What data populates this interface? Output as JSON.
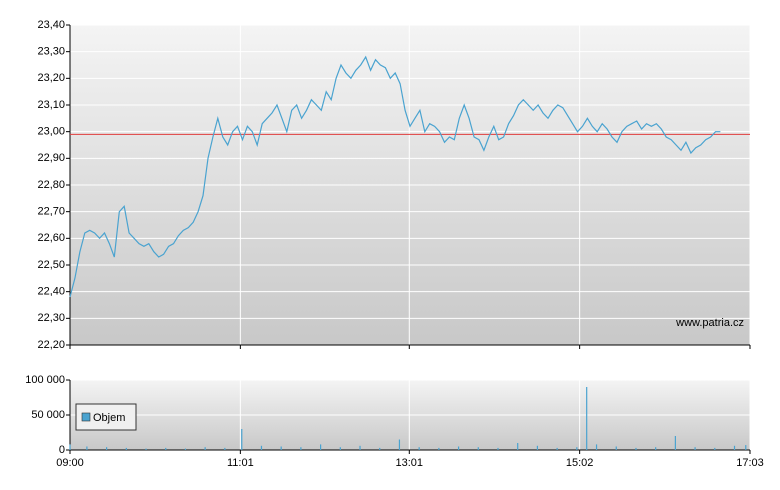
{
  "chart_data": [
    {
      "type": "line",
      "color": "#4aa3d0",
      "ylim": [
        22.2,
        23.4
      ],
      "yticks": [
        {
          "value": 22.2,
          "label": "22,20"
        },
        {
          "value": 22.3,
          "label": "22,30"
        },
        {
          "value": 22.4,
          "label": "22,40"
        },
        {
          "value": 22.5,
          "label": "22,50"
        },
        {
          "value": 22.6,
          "label": "22,60"
        },
        {
          "value": 22.7,
          "label": "22,70"
        },
        {
          "value": 22.8,
          "label": "22,80"
        },
        {
          "value": 22.9,
          "label": "22,90"
        },
        {
          "value": 23.0,
          "label": "23,00"
        },
        {
          "value": 23.1,
          "label": "23,10"
        },
        {
          "value": 23.2,
          "label": "23,20"
        },
        {
          "value": 23.3,
          "label": "23,30"
        },
        {
          "value": 23.4,
          "label": "23,40"
        }
      ],
      "grid": true,
      "reference_line": 22.99,
      "reference_color": "#e03c3c",
      "watermark": "www.patria.cz",
      "x": [
        540,
        543.5,
        547,
        550.5,
        554,
        557.5,
        561,
        564.5,
        568,
        571.5,
        575,
        578.5,
        582,
        585.5,
        589,
        592.5,
        596,
        599.5,
        603,
        606.5,
        610,
        613.5,
        617,
        620.5,
        624,
        627.5,
        631,
        634.5,
        638,
        641.5,
        645,
        648.5,
        652,
        655.5,
        659,
        662.5,
        666,
        669.5,
        673,
        676.5,
        680,
        683.5,
        687,
        690.5,
        694,
        697.5,
        701,
        704.5,
        708,
        711.5,
        715,
        718.5,
        722,
        725.5,
        729,
        732.5,
        736,
        739.5,
        743,
        746.5,
        750,
        753.5,
        757,
        760.5,
        764,
        767.5,
        771,
        774.5,
        778,
        781.5,
        785,
        788.5,
        792,
        795.5,
        799,
        802.5,
        806,
        809.5,
        813,
        816.5,
        820,
        823.5,
        827,
        830.5,
        834,
        837.5,
        841,
        844.5,
        848,
        851.5,
        855,
        858.5,
        862,
        865.5,
        869,
        872.5,
        876,
        879.5,
        883,
        886.5,
        890,
        893.5,
        897,
        900.5,
        904,
        907.5,
        911,
        914.5,
        918,
        921.5,
        925,
        928.5,
        932,
        935.5,
        939,
        942.5,
        946,
        949.5,
        953,
        956.5,
        960,
        963.5,
        967,
        970.5,
        974,
        977.5,
        981,
        984.5,
        988,
        991.5,
        995,
        998.5,
        1002
      ],
      "values": [
        22.38,
        22.45,
        22.55,
        22.62,
        22.63,
        22.62,
        22.6,
        22.62,
        22.58,
        22.53,
        22.7,
        22.72,
        22.62,
        22.6,
        22.58,
        22.57,
        22.58,
        22.55,
        22.53,
        22.54,
        22.57,
        22.58,
        22.61,
        22.63,
        22.64,
        22.66,
        22.7,
        22.76,
        22.9,
        22.98,
        23.05,
        22.98,
        22.95,
        23.0,
        23.02,
        22.97,
        23.02,
        23.0,
        22.95,
        23.03,
        23.05,
        23.07,
        23.1,
        23.05,
        23.0,
        23.08,
        23.1,
        23.05,
        23.08,
        23.12,
        23.1,
        23.08,
        23.15,
        23.12,
        23.2,
        23.25,
        23.22,
        23.2,
        23.23,
        23.25,
        23.28,
        23.23,
        23.27,
        23.25,
        23.24,
        23.2,
        23.22,
        23.18,
        23.08,
        23.02,
        23.05,
        23.08,
        23.0,
        23.03,
        23.02,
        23.0,
        22.96,
        22.98,
        22.97,
        23.05,
        23.1,
        23.05,
        22.98,
        22.97,
        22.93,
        22.98,
        23.02,
        22.97,
        22.98,
        23.03,
        23.06,
        23.1,
        23.12,
        23.1,
        23.08,
        23.1,
        23.07,
        23.05,
        23.08,
        23.1,
        23.09,
        23.06,
        23.03,
        23.0,
        23.02,
        23.05,
        23.02,
        23.0,
        23.03,
        23.01,
        22.98,
        22.96,
        23.0,
        23.02,
        23.03,
        23.04,
        23.01,
        23.03,
        23.02,
        23.03,
        23.01,
        22.98,
        22.97,
        22.95,
        22.93,
        22.96,
        22.92,
        22.94,
        22.95,
        22.97,
        22.98,
        23.0,
        23.0
      ]
    },
    {
      "type": "bar",
      "xlim": [
        540,
        1023
      ],
      "xticks": [
        {
          "value": 540,
          "label": "09:00"
        },
        {
          "value": 661,
          "label": "11:01"
        },
        {
          "value": 781,
          "label": "13:01"
        },
        {
          "value": 902,
          "label": "15:02"
        },
        {
          "value": 1023,
          "label": "17:03"
        }
      ],
      "ylim": [
        0,
        100000
      ],
      "yticks": [
        {
          "value": 0,
          "label": "0"
        },
        {
          "value": 50000,
          "label": "50 000"
        },
        {
          "value": 100000,
          "label": "100 000"
        }
      ],
      "grid": true,
      "legend": "lower left",
      "x": [
        540,
        552,
        566,
        580,
        594,
        608,
        622,
        636,
        650,
        662,
        676,
        690,
        704,
        718,
        732,
        746,
        760,
        774,
        788,
        802,
        816,
        830,
        844,
        858,
        872,
        886,
        900,
        907,
        914,
        928,
        942,
        956,
        970,
        984,
        998,
        1012,
        1020
      ],
      "series": [
        {
          "name": "Objem",
          "color": "#4aa3d0",
          "values": [
            8000,
            5000,
            4000,
            3000,
            2000,
            3000,
            2000,
            4000,
            3000,
            30000,
            6000,
            5000,
            4000,
            8000,
            4000,
            6000,
            3000,
            15000,
            4000,
            3000,
            5000,
            4000,
            3000,
            10000,
            6000,
            3000,
            4000,
            90000,
            8000,
            5000,
            3000,
            4000,
            20000,
            4000,
            3000,
            6000,
            7000
          ]
        }
      ]
    }
  ]
}
